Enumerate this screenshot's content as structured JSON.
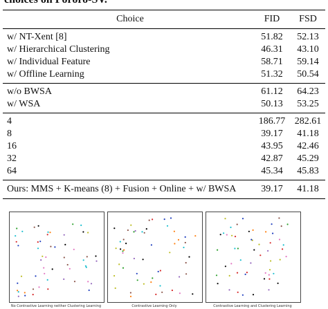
{
  "caption_tail": "choices on Pororo-SV.",
  "table": {
    "headers": [
      "Choice",
      "FID",
      "FSD"
    ],
    "groups": [
      {
        "rows": [
          {
            "choice": "w/ NT-Xent [8]",
            "fid": "51.82",
            "fsd": "52.13"
          },
          {
            "choice": "w/ Hierarchical Clustering",
            "fid": "46.31",
            "fsd": "43.10"
          },
          {
            "choice": "w/ Individual Feature",
            "fid": "58.71",
            "fsd": "59.14"
          },
          {
            "choice": "w/ Offline Learning",
            "fid": "51.32",
            "fsd": "50.54"
          }
        ]
      },
      {
        "rows": [
          {
            "choice": "w/o BWSA",
            "fid": "61.12",
            "fsd": "64.23"
          },
          {
            "choice": "w/ WSA",
            "fid": "50.13",
            "fsd": "53.25"
          }
        ]
      },
      {
        "rows": [
          {
            "choice": "4",
            "fid": "186.77",
            "fsd": "282.61"
          },
          {
            "choice": "8",
            "fid": "39.17",
            "fsd": "41.18"
          },
          {
            "choice": "16",
            "fid": "43.95",
            "fsd": "42.46"
          },
          {
            "choice": "32",
            "fid": "42.87",
            "fsd": "45.29"
          },
          {
            "choice": "64",
            "fid": "45.34",
            "fsd": "45.83"
          }
        ]
      }
    ],
    "final_row": {
      "choice": "Ours: MMS + K-means (8) + Fusion + Online + w/ BWSA",
      "fid": "39.17",
      "fsd": "41.18"
    }
  },
  "figure": {
    "panels": [
      {
        "caption": "No Contrastive Learning neither Clustering Learning"
      },
      {
        "caption": "Contrastive Learning Only"
      },
      {
        "caption": "Contrastive Learning and Clustering Learning"
      }
    ],
    "dot_colors": [
      "#1f3fbf",
      "#d62728",
      "#2ca02c",
      "#9467bd",
      "#17becf",
      "#ff7f0e",
      "#e377c2",
      "#000000",
      "#bcbd22",
      "#8c564b"
    ]
  }
}
